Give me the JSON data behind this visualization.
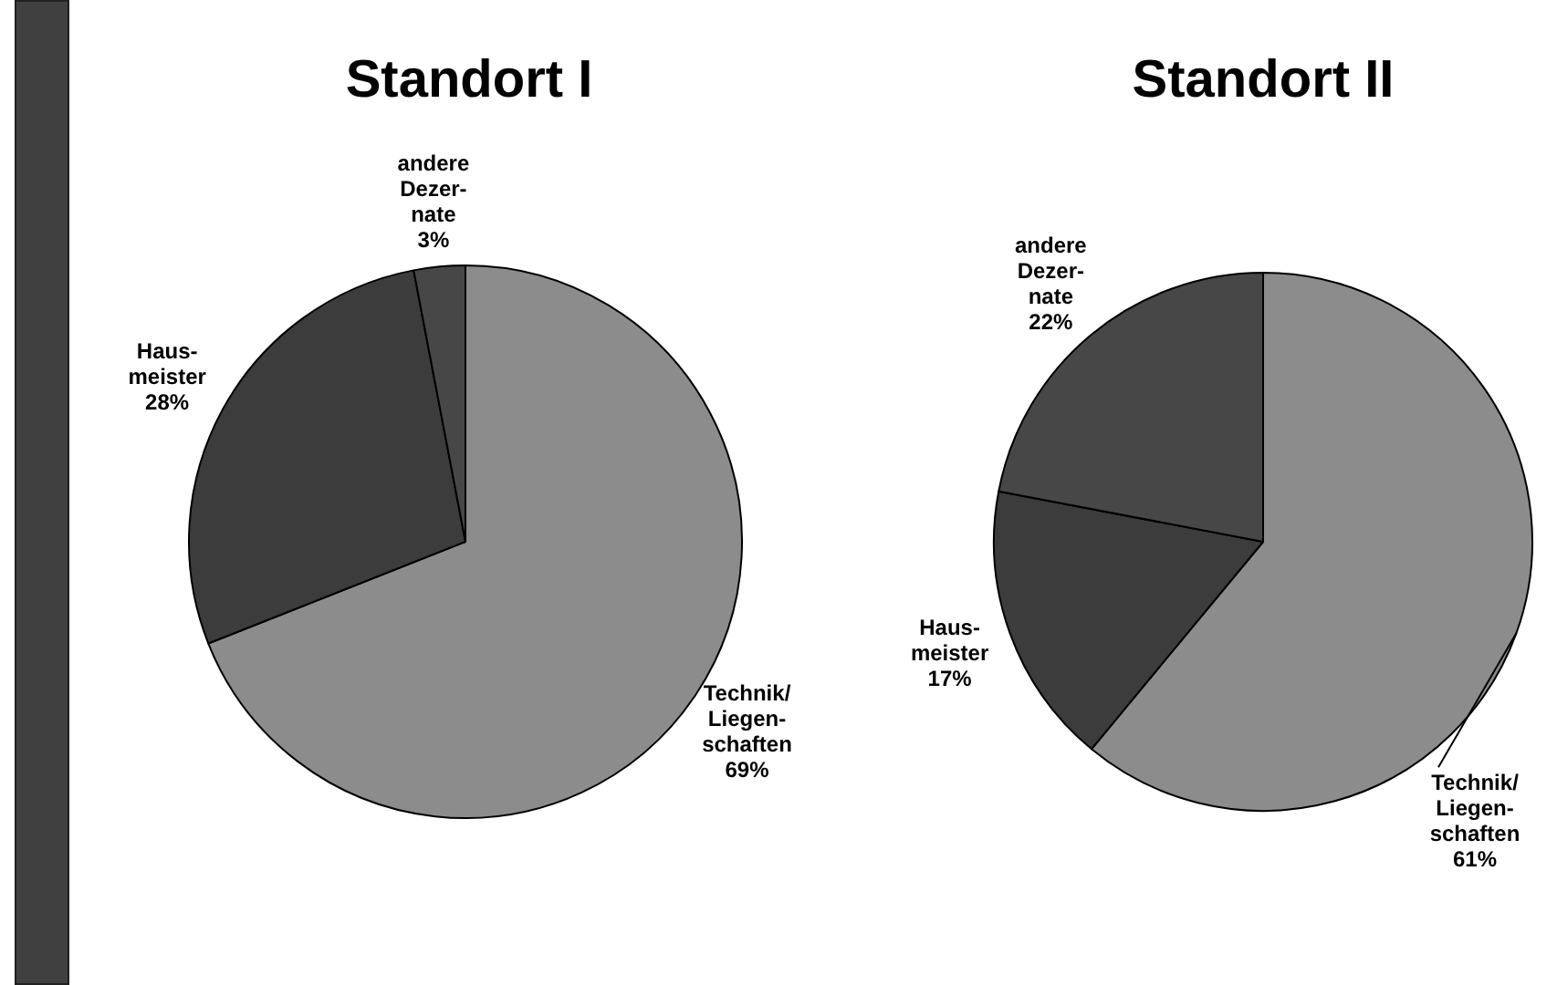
{
  "chart_data": [
    {
      "type": "pie",
      "title": "Standort I",
      "categories": [
        "Technik/\nLiegen-\nschaften",
        "Haus-\nmeister",
        "andere\nDezer-\nnate"
      ],
      "values": [
        69,
        28,
        3
      ],
      "colors": [
        "#8c8c8c",
        "#3c3c3c",
        "#474747"
      ],
      "value_labels": [
        "69%",
        "28%",
        "3%"
      ]
    },
    {
      "type": "pie",
      "title": "Standort II",
      "categories": [
        "Technik/\nLiegen-\nschaften",
        "Haus-\nmeister",
        "andere\nDezer-\nnate"
      ],
      "values": [
        61,
        17,
        22
      ],
      "colors": [
        "#8c8c8c",
        "#3c3c3c",
        "#474747"
      ],
      "value_labels": [
        "61%",
        "17%",
        "22%"
      ]
    }
  ]
}
